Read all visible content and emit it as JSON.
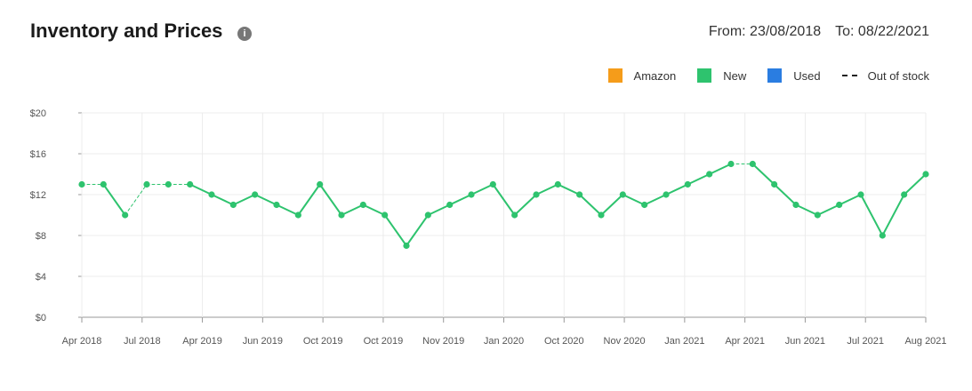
{
  "header": {
    "title": "Inventory and Prices",
    "info_icon": "info-icon",
    "from_label": "From: 23/08/2018",
    "to_label": "To: 08/22/2021"
  },
  "legend": {
    "items": [
      {
        "label": "Amazon",
        "color": "#f59c1a"
      },
      {
        "label": "New",
        "color": "#2ec36e"
      },
      {
        "label": "Used",
        "color": "#2a7de1"
      }
    ],
    "out_of_stock_label": "Out of stock"
  },
  "chart_data": {
    "type": "line",
    "ylim": [
      0,
      20
    ],
    "y_ticks": [
      0,
      4,
      8,
      12,
      16,
      20
    ],
    "y_tick_labels": [
      "$0",
      "$4",
      "$8",
      "$12",
      "$16",
      "$20"
    ],
    "grid": true,
    "x_tick_labels": [
      "Apr 2018",
      "Jul 2018",
      "Apr 2019",
      "Jun 2019",
      "Oct 2019",
      "Oct 2019",
      "Nov 2019",
      "Jan 2020",
      "Oct 2020",
      "Nov 2020",
      "Jan 2021",
      "Apr 2021",
      "Jun 2021",
      "Jul 2021",
      "Aug 2021"
    ],
    "series": [
      {
        "name": "New",
        "color": "#2ec36e",
        "values": [
          13,
          13,
          10,
          13,
          13,
          13,
          12,
          11,
          12,
          11,
          10,
          13,
          10,
          11,
          10,
          7,
          10,
          11,
          12,
          13,
          10,
          12,
          13,
          12,
          10,
          12,
          11,
          12,
          13,
          14,
          15,
          15,
          13,
          11,
          10,
          11,
          12,
          8,
          12,
          14
        ],
        "out_of_stock_segments": [
          [
            0,
            1
          ],
          [
            2,
            3
          ],
          [
            3,
            4
          ],
          [
            4,
            5
          ],
          [
            30,
            31
          ]
        ]
      }
    ]
  }
}
